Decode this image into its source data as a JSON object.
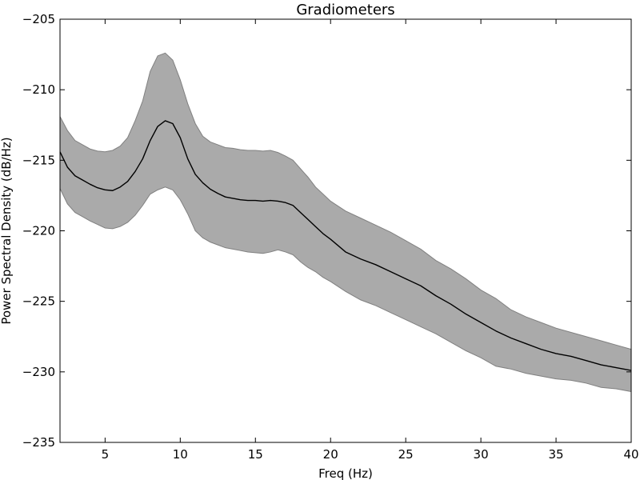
{
  "chart_data": {
    "type": "line",
    "title": "Gradiometers",
    "xlabel": "Freq (Hz)",
    "ylabel": "Power Spectral Density (dB/Hz)",
    "xlim": [
      2,
      40
    ],
    "ylim": [
      -235,
      -205
    ],
    "xticks": [
      5,
      10,
      15,
      20,
      25,
      30,
      35,
      40
    ],
    "yticks": [
      -235,
      -230,
      -225,
      -220,
      -215,
      -210,
      -205
    ],
    "grid": false,
    "legend": "none",
    "colors": {
      "band_fill": "#aaaaaa",
      "band_edge": "#808080",
      "mean_line": "#000000",
      "axes": "#000000",
      "background": "#ffffff"
    },
    "x": [
      2,
      2.5,
      3,
      3.5,
      4,
      4.5,
      5,
      5.5,
      6,
      6.5,
      7,
      7.5,
      8,
      8.5,
      9,
      9.5,
      10,
      10.5,
      11,
      11.5,
      12,
      12.5,
      13,
      13.5,
      14,
      14.5,
      15,
      15.5,
      16,
      16.5,
      17,
      17.5,
      18,
      18.5,
      19,
      19.5,
      20,
      21,
      22,
      23,
      24,
      25,
      26,
      27,
      28,
      29,
      30,
      31,
      32,
      33,
      34,
      35,
      36,
      37,
      38,
      39,
      40
    ],
    "series": [
      {
        "values": [
          -214.4,
          -215.5,
          -216.1,
          -216.4,
          -216.7,
          -216.95,
          -217.1,
          -217.15,
          -216.9,
          -216.5,
          -215.8,
          -214.9,
          -213.6,
          -212.6,
          -212.2,
          -212.4,
          -213.4,
          -214.9,
          -216.0,
          -216.6,
          -217.05,
          -217.35,
          -217.6,
          -217.7,
          -217.8,
          -217.85,
          -217.85,
          -217.9,
          -217.85,
          -217.9,
          -218.0,
          -218.2,
          -218.7,
          -219.2,
          -219.7,
          -220.2,
          -220.6,
          -221.5,
          -222.0,
          -222.4,
          -222.9,
          -223.4,
          -223.9,
          -224.6,
          -225.2,
          -225.9,
          -226.5,
          -227.1,
          -227.6,
          -228.0,
          -228.4,
          -228.7,
          -228.9,
          -229.2,
          -229.5,
          -229.7,
          -229.9
        ]
      }
    ],
    "band": {
      "upper": [
        -211.9,
        -212.9,
        -213.6,
        -213.9,
        -214.2,
        -214.35,
        -214.4,
        -214.3,
        -214.0,
        -213.4,
        -212.2,
        -210.8,
        -208.7,
        -207.6,
        -207.4,
        -207.9,
        -209.3,
        -211.0,
        -212.4,
        -213.3,
        -213.7,
        -213.9,
        -214.1,
        -214.15,
        -214.25,
        -214.3,
        -214.3,
        -214.35,
        -214.3,
        -214.45,
        -214.7,
        -215.0,
        -215.6,
        -216.2,
        -216.9,
        -217.4,
        -217.9,
        -218.6,
        -219.1,
        -219.6,
        -220.1,
        -220.7,
        -221.3,
        -222.1,
        -222.7,
        -223.4,
        -224.2,
        -224.8,
        -225.6,
        -226.1,
        -226.5,
        -226.9,
        -227.2,
        -227.5,
        -227.8,
        -228.1,
        -228.4
      ],
      "lower": [
        -217.0,
        -218.1,
        -218.7,
        -219.0,
        -219.3,
        -219.55,
        -219.8,
        -219.85,
        -219.7,
        -219.4,
        -218.9,
        -218.2,
        -217.4,
        -217.1,
        -216.9,
        -217.1,
        -217.8,
        -218.8,
        -220.0,
        -220.5,
        -220.8,
        -221.0,
        -221.2,
        -221.3,
        -221.4,
        -221.5,
        -221.55,
        -221.6,
        -221.5,
        -221.35,
        -221.5,
        -221.7,
        -222.2,
        -222.6,
        -222.9,
        -223.3,
        -223.6,
        -224.3,
        -224.9,
        -225.3,
        -225.8,
        -226.3,
        -226.8,
        -227.3,
        -227.9,
        -228.5,
        -229.0,
        -229.6,
        -229.8,
        -230.1,
        -230.3,
        -230.5,
        -230.6,
        -230.8,
        -231.1,
        -231.2,
        -231.4
      ]
    }
  }
}
